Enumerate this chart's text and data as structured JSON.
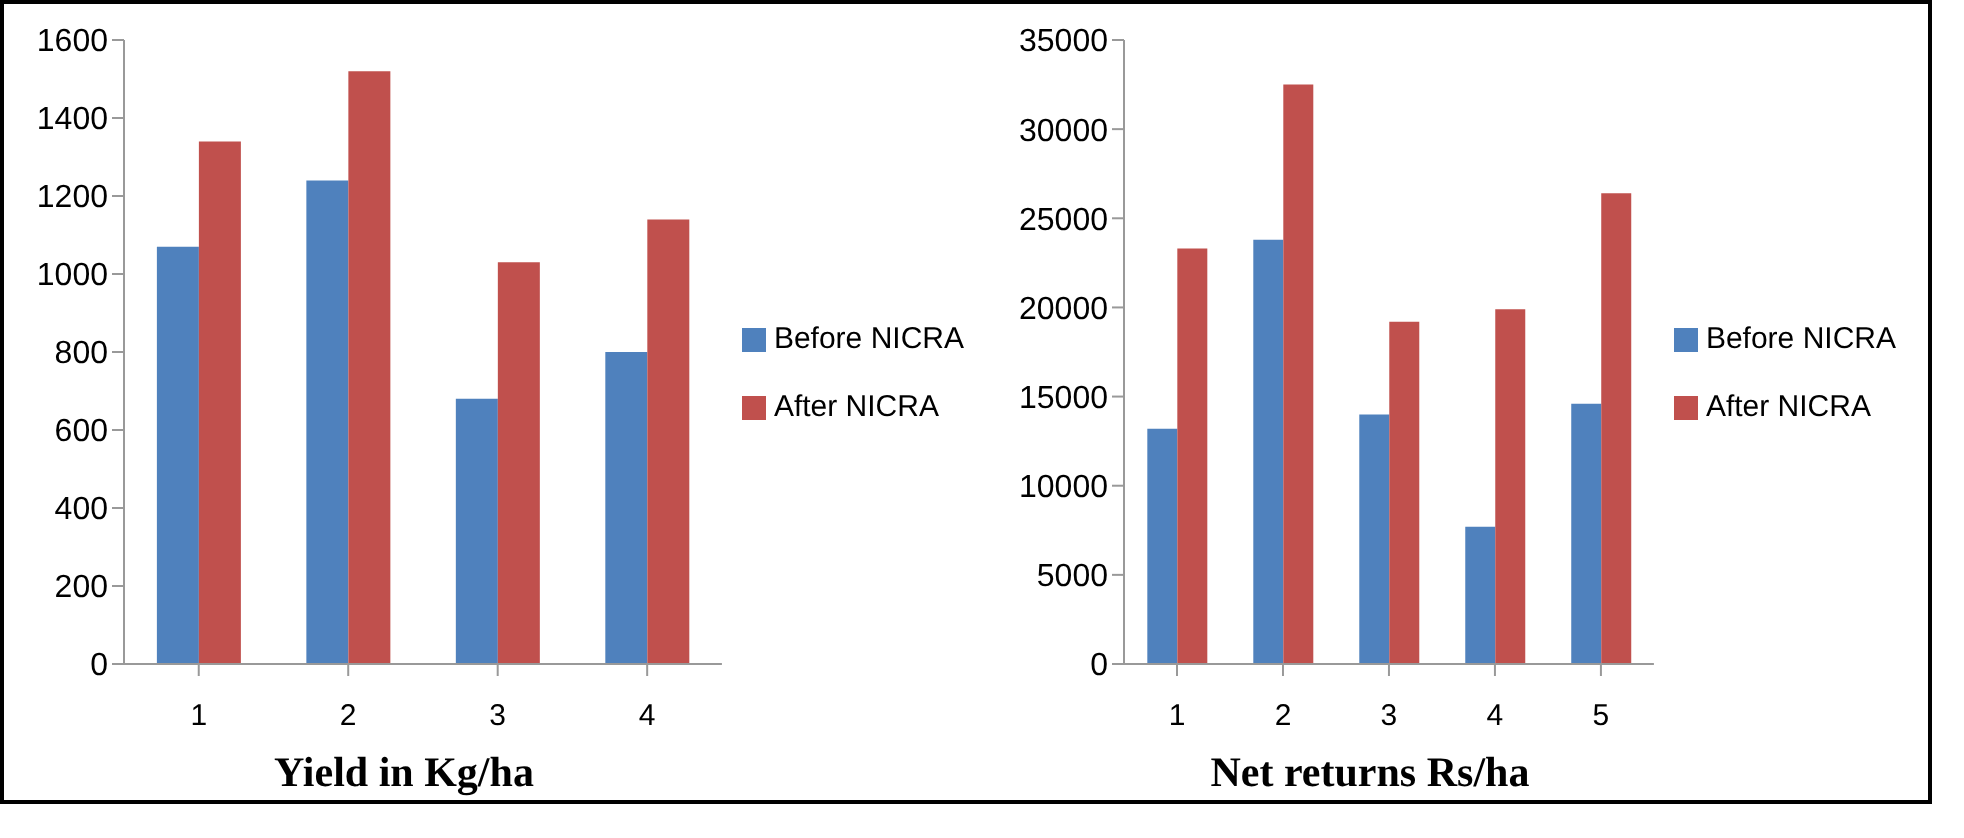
{
  "chart_data": [
    {
      "type": "bar",
      "xlabel": "Yield in Kg/ha",
      "categories": [
        "1",
        "2",
        "3",
        "4"
      ],
      "series": [
        {
          "name": "Before NICRA",
          "color": "#4f81bd",
          "values": [
            1070,
            1240,
            680,
            800
          ]
        },
        {
          "name": "After NICRA",
          "color": "#c0504d",
          "values": [
            1340,
            1520,
            1030,
            1140
          ]
        }
      ],
      "ylim": [
        0,
        1600
      ],
      "yticks": [
        0,
        200,
        400,
        600,
        800,
        1000,
        1200,
        1400,
        1600
      ],
      "grid": false,
      "legend": "right"
    },
    {
      "type": "bar",
      "xlabel": "Net returns Rs/ha",
      "categories": [
        "1",
        "2",
        "3",
        "4",
        "5"
      ],
      "series": [
        {
          "name": "Before NICRA",
          "color": "#4f81bd",
          "values": [
            13200,
            23800,
            14000,
            7700,
            14600
          ]
        },
        {
          "name": "After NICRA",
          "color": "#c0504d",
          "values": [
            23300,
            32500,
            19200,
            19900,
            26400
          ]
        }
      ],
      "ylim": [
        0,
        35000
      ],
      "yticks": [
        0,
        5000,
        10000,
        15000,
        20000,
        25000,
        30000,
        35000
      ],
      "grid": false,
      "legend": "right"
    }
  ]
}
